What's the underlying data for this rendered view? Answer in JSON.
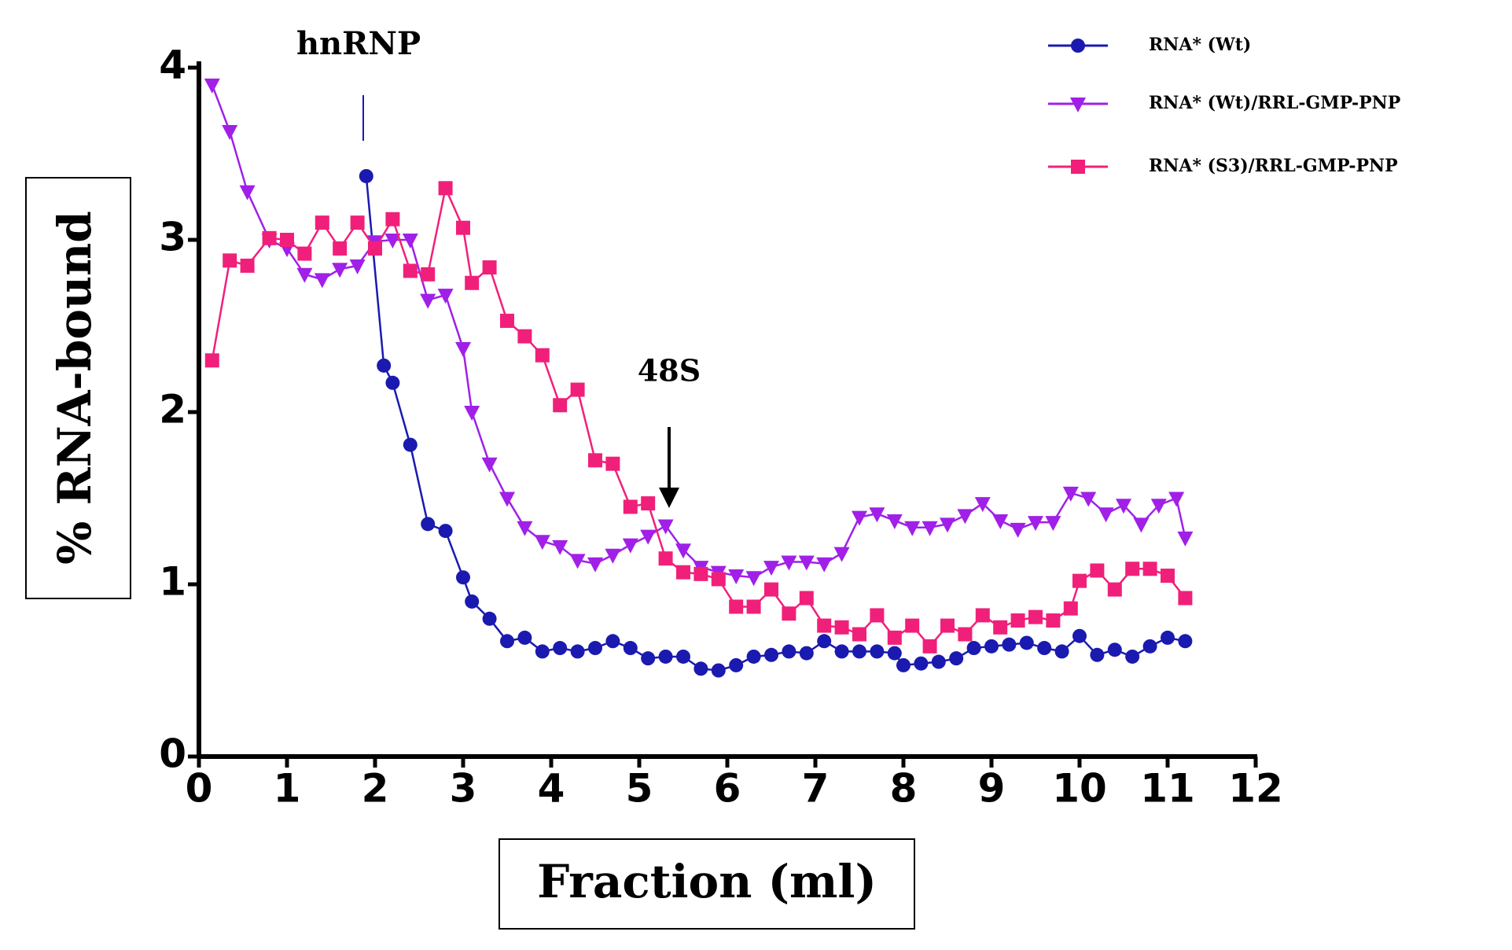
{
  "chart_data": {
    "type": "line",
    "xlabel": "Fraction (ml)",
    "ylabel": "% RNA-bound",
    "annotations": [
      "hnRNP",
      "48S"
    ],
    "xlim": [
      0,
      12
    ],
    "xticks": [
      0,
      1,
      2,
      3,
      4,
      5,
      6,
      7,
      8,
      9,
      10,
      11,
      12
    ],
    "ylim": [
      0,
      4
    ],
    "yticks": [
      0,
      1,
      2,
      3,
      4
    ],
    "legend": "upper right",
    "series": [
      {
        "name": "RNA* (Wt)",
        "color": "#1a1ab0",
        "marker": "circle",
        "x": [
          1.9,
          2.1,
          2.2,
          2.4,
          2.6,
          2.8,
          3.0,
          3.1,
          3.3,
          3.5,
          3.7,
          3.9,
          4.1,
          4.3,
          4.5,
          4.7,
          4.9,
          5.1,
          5.3,
          5.5,
          5.7,
          5.9,
          6.1,
          6.3,
          6.5,
          6.7,
          6.9,
          7.1,
          7.3,
          7.5,
          7.7,
          7.9,
          8.0,
          8.2,
          8.4,
          8.6,
          8.8,
          9.0,
          9.2,
          9.4,
          9.6,
          9.8,
          10.0,
          10.2,
          10.4,
          10.6,
          10.8,
          11.0,
          11.2
        ],
        "values": [
          3.37,
          2.27,
          2.17,
          1.81,
          1.35,
          1.31,
          1.04,
          0.9,
          0.8,
          0.67,
          0.69,
          0.61,
          0.63,
          0.61,
          0.63,
          0.67,
          0.63,
          0.57,
          0.58,
          0.58,
          0.51,
          0.5,
          0.53,
          0.58,
          0.59,
          0.61,
          0.6,
          0.67,
          0.61,
          0.61,
          0.61,
          0.6,
          0.53,
          0.54,
          0.55,
          0.57,
          0.63,
          0.64,
          0.65,
          0.66,
          0.63,
          0.61,
          0.7,
          0.59,
          0.62,
          0.58,
          0.64,
          0.69,
          0.67
        ]
      },
      {
        "name": "RNA* (Wt)/RRL-GMP-PNP",
        "color": "#a020e8",
        "marker": "triangle-down",
        "x": [
          0.15,
          0.35,
          0.55,
          0.8,
          1.0,
          1.2,
          1.4,
          1.6,
          1.8,
          2.0,
          2.2,
          2.4,
          2.6,
          2.8,
          3.0,
          3.1,
          3.3,
          3.5,
          3.7,
          3.9,
          4.1,
          4.3,
          4.5,
          4.7,
          4.9,
          5.1,
          5.3,
          5.5,
          5.7,
          5.9,
          6.1,
          6.3,
          6.5,
          6.7,
          6.9,
          7.1,
          7.3,
          7.5,
          7.7,
          7.9,
          8.1,
          8.3,
          8.5,
          8.7,
          8.9,
          9.1,
          9.3,
          9.5,
          9.7,
          9.9,
          10.1,
          10.3,
          10.5,
          10.7,
          10.9,
          11.1,
          11.2
        ],
        "values": [
          3.9,
          3.63,
          3.28,
          3.0,
          2.95,
          2.8,
          2.77,
          2.83,
          2.85,
          2.99,
          3.0,
          3.0,
          2.65,
          2.68,
          2.37,
          2.0,
          1.7,
          1.5,
          1.33,
          1.25,
          1.22,
          1.14,
          1.12,
          1.17,
          1.23,
          1.28,
          1.34,
          1.2,
          1.1,
          1.07,
          1.05,
          1.04,
          1.1,
          1.13,
          1.13,
          1.12,
          1.18,
          1.39,
          1.41,
          1.37,
          1.33,
          1.33,
          1.35,
          1.4,
          1.47,
          1.37,
          1.32,
          1.36,
          1.36,
          1.53,
          1.5,
          1.41,
          1.46,
          1.35,
          1.46,
          1.5,
          1.27
        ]
      },
      {
        "name": "RNA* (S3)/RRL-GMP-PNP",
        "color": "#f0207a",
        "marker": "square",
        "x": [
          0.15,
          0.35,
          0.55,
          0.8,
          1.0,
          1.2,
          1.4,
          1.6,
          1.8,
          2.0,
          2.2,
          2.4,
          2.6,
          2.8,
          3.0,
          3.1,
          3.3,
          3.5,
          3.7,
          3.9,
          4.1,
          4.3,
          4.5,
          4.7,
          4.9,
          5.1,
          5.3,
          5.5,
          5.7,
          5.9,
          6.1,
          6.3,
          6.5,
          6.7,
          6.9,
          7.1,
          7.3,
          7.5,
          7.7,
          7.9,
          8.1,
          8.3,
          8.5,
          8.7,
          8.9,
          9.1,
          9.3,
          9.5,
          9.7,
          9.9,
          10.0,
          10.2,
          10.4,
          10.6,
          10.8,
          11.0,
          11.2
        ],
        "values": [
          2.3,
          2.88,
          2.85,
          3.01,
          3.0,
          2.92,
          3.1,
          2.95,
          3.1,
          2.95,
          3.12,
          2.82,
          2.8,
          3.3,
          3.07,
          2.75,
          2.84,
          2.53,
          2.44,
          2.33,
          2.04,
          2.13,
          1.72,
          1.7,
          1.45,
          1.47,
          1.15,
          1.07,
          1.06,
          1.03,
          0.87,
          0.87,
          0.97,
          0.83,
          0.92,
          0.76,
          0.75,
          0.71,
          0.82,
          0.69,
          0.76,
          0.64,
          0.76,
          0.71,
          0.82,
          0.75,
          0.79,
          0.81,
          0.79,
          0.86,
          1.02,
          1.08,
          0.97,
          1.09,
          1.09,
          1.05,
          0.92
        ]
      }
    ]
  }
}
